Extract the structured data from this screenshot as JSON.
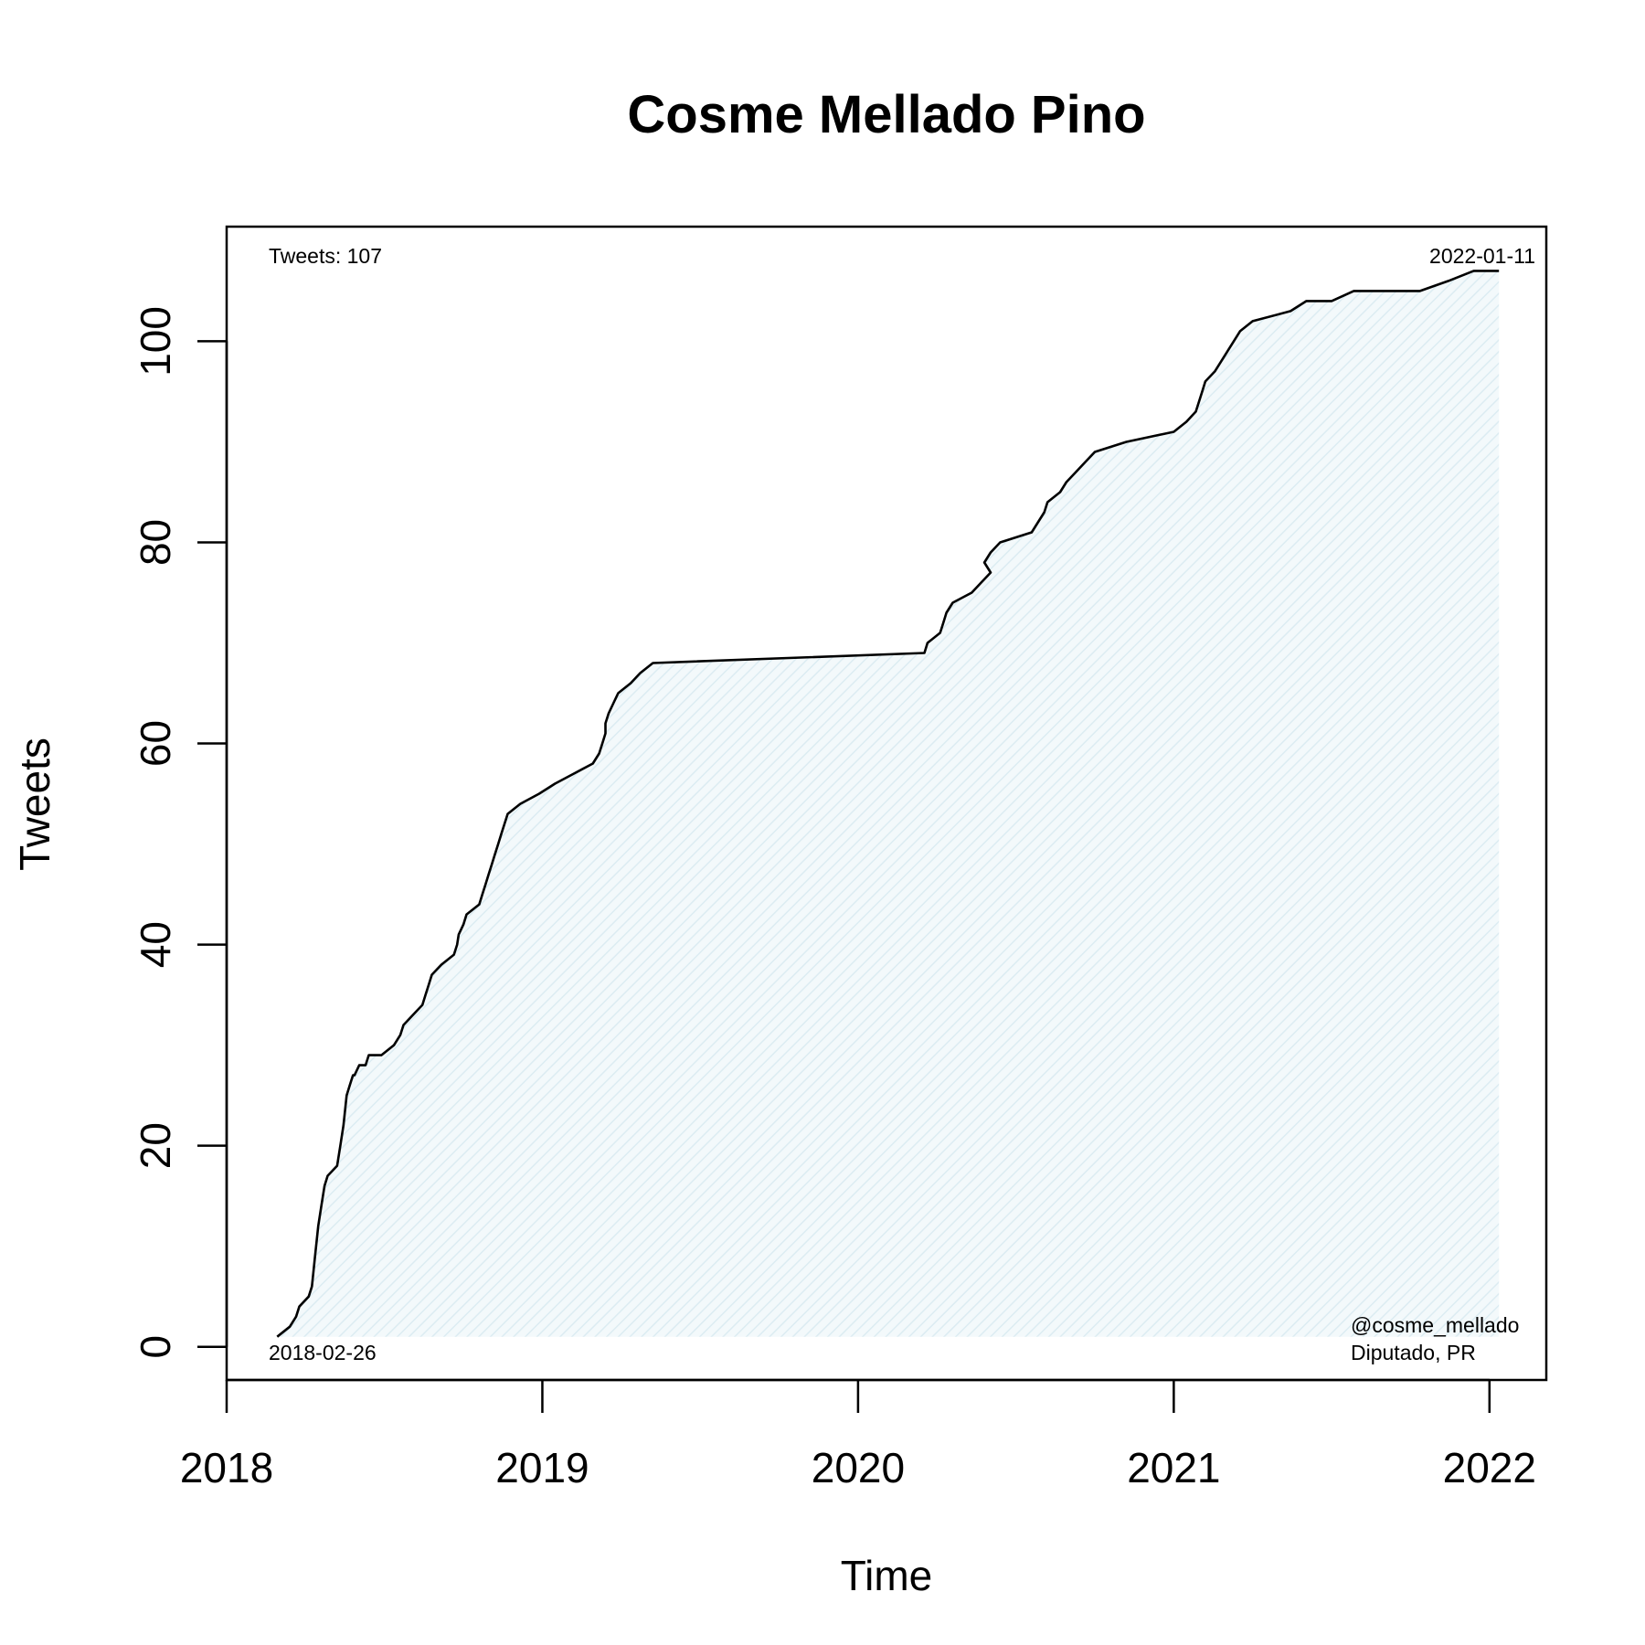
{
  "chart_data": {
    "type": "area",
    "title": "Cosme Mellado Pino",
    "xlabel": "Time",
    "ylabel": "Tweets",
    "x_ticks": [
      "2018",
      "2019",
      "2020",
      "2021",
      "2022"
    ],
    "x_tick_values": [
      2018.0,
      2019.0,
      2020.0,
      2021.0,
      2022.0
    ],
    "y_ticks": [
      0,
      20,
      40,
      60,
      80,
      100
    ],
    "xlim": [
      2018.0,
      2022.18
    ],
    "ylim": [
      -3.3,
      111.4
    ],
    "grid": false,
    "fill_color": "#e6f2f7",
    "line_color": "#000000",
    "annotations": {
      "count_label": "Tweets: 107",
      "start_date": "2018-02-26",
      "end_date": "2022-01-11",
      "handle": "@cosme_mellado",
      "role": "Diputado, PR"
    },
    "series": [
      {
        "x": [
          2018.16,
          2018.2,
          2018.22,
          2018.23,
          2018.26,
          2018.27,
          2018.28,
          2018.29,
          2018.3,
          2018.31,
          2018.32,
          2018.35,
          2018.36,
          2018.37,
          2018.38,
          2018.39,
          2018.4,
          2018.405,
          2018.42,
          2018.44,
          2018.45,
          2018.49,
          2018.53,
          2018.55,
          2018.56,
          2018.59,
          2018.62,
          2018.63,
          2018.64,
          2018.65,
          2018.68,
          2018.72,
          2018.73,
          2018.735,
          2018.75,
          2018.76,
          2018.8,
          2018.81,
          2018.82,
          2018.83,
          2018.84,
          2018.85,
          2018.86,
          2018.87,
          2018.88,
          2018.89,
          2018.93,
          2018.99,
          2019.04,
          2019.1,
          2019.16,
          2019.18,
          2019.19,
          2019.2,
          2019.2,
          2019.21,
          2019.225,
          2019.24,
          2019.28,
          2019.31,
          2019.35,
          2020.21,
          2020.22,
          2020.26,
          2020.27,
          2020.28,
          2020.3,
          2020.36,
          2020.39,
          2020.42,
          2020.4,
          2020.42,
          2020.45,
          2020.55,
          2020.57,
          2020.59,
          2020.6,
          2020.64,
          2020.66,
          2020.69,
          2020.72,
          2020.75,
          2020.85,
          2021.0,
          2021.04,
          2021.07,
          2021.08,
          2021.09,
          2021.1,
          2021.13,
          2021.15,
          2021.17,
          2021.19,
          2021.21,
          2021.25,
          2021.37,
          2021.42,
          2021.435,
          2021.44,
          2021.45,
          2021.5,
          2021.57,
          2021.68,
          2021.78,
          2021.87,
          2021.95,
          2022.03
        ],
        "y": [
          1,
          2,
          3,
          4,
          5,
          6,
          9,
          12,
          14,
          16,
          17,
          18,
          20,
          22,
          25,
          26,
          27,
          27,
          28,
          28,
          29,
          29,
          30,
          31,
          32,
          33,
          34,
          35,
          36,
          37,
          38,
          39,
          40,
          41,
          42,
          43,
          44,
          45,
          46,
          47,
          48,
          49,
          50,
          51,
          52,
          53,
          54,
          55,
          56,
          57,
          58,
          59,
          60,
          61,
          62,
          63,
          64,
          65,
          66,
          67,
          68,
          69,
          70,
          71,
          72,
          73,
          74,
          75,
          76,
          77,
          78,
          79,
          80,
          81,
          82,
          83,
          84,
          85,
          86,
          87,
          88,
          89,
          90,
          91,
          92,
          93,
          94,
          95,
          96,
          97,
          98,
          99,
          100,
          101,
          102,
          103,
          104,
          104,
          104,
          104,
          104,
          105,
          105,
          105,
          106,
          107,
          107
        ]
      }
    ]
  }
}
